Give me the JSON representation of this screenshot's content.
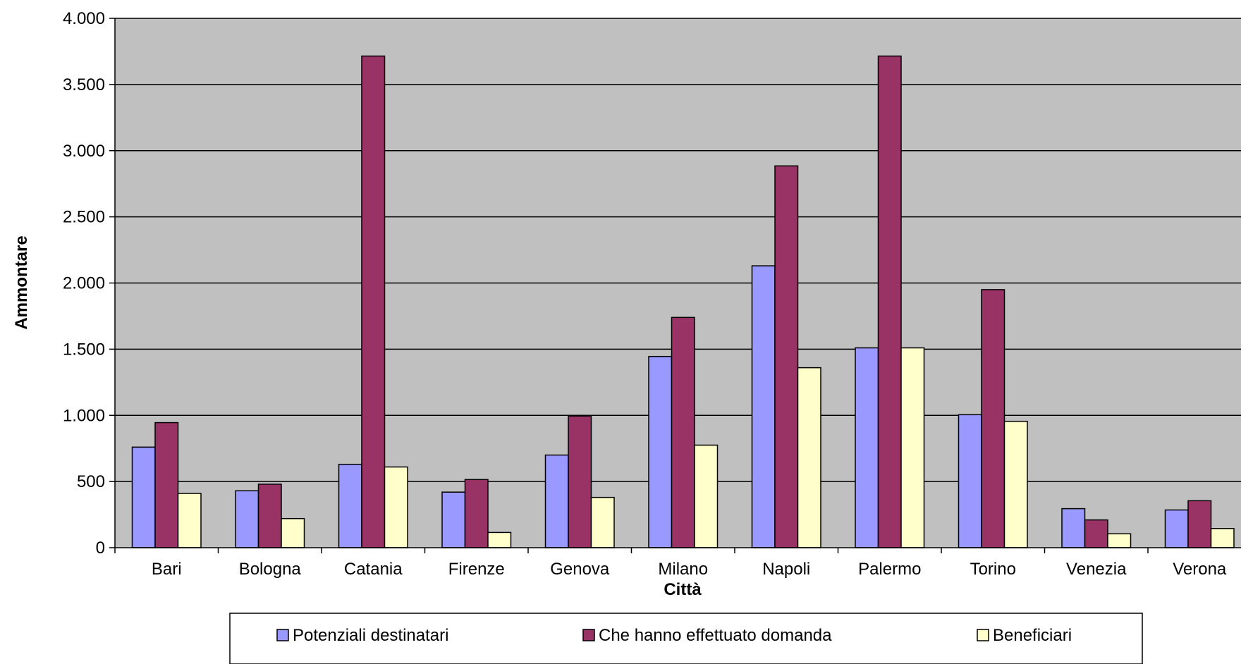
{
  "chart_data": {
    "type": "bar",
    "xlabel": "Città",
    "ylabel": "Ammontare",
    "ylim": [
      0,
      4000
    ],
    "y_ticks": [
      0,
      500,
      1000,
      1500,
      2000,
      2500,
      3000,
      3500,
      4000
    ],
    "y_tick_labels": [
      "0",
      "500",
      "1.000",
      "1.500",
      "2.000",
      "2.500",
      "3.000",
      "3.500",
      "4.000"
    ],
    "grid": true,
    "plot_background": "#C0C0C0",
    "legend_position": "bottom",
    "categories": [
      "Bari",
      "Bologna",
      "Catania",
      "Firenze",
      "Genova",
      "Milano",
      "Napoli",
      "Palermo",
      "Torino",
      "Venezia",
      "Verona"
    ],
    "series": [
      {
        "name": "Potenziali destinatari",
        "color": "#9999FF",
        "values": [
          760,
          430,
          630,
          420,
          700,
          1445,
          2130,
          1510,
          1005,
          295,
          285
        ]
      },
      {
        "name": "Che hanno effettuato domanda",
        "color": "#993366",
        "values": [
          945,
          480,
          3715,
          515,
          995,
          1740,
          2885,
          3715,
          1950,
          210,
          355
        ]
      },
      {
        "name": "Beneficiari",
        "color": "#FFFFCC",
        "values": [
          410,
          220,
          610,
          115,
          380,
          775,
          1360,
          1510,
          955,
          105,
          145
        ]
      }
    ]
  }
}
